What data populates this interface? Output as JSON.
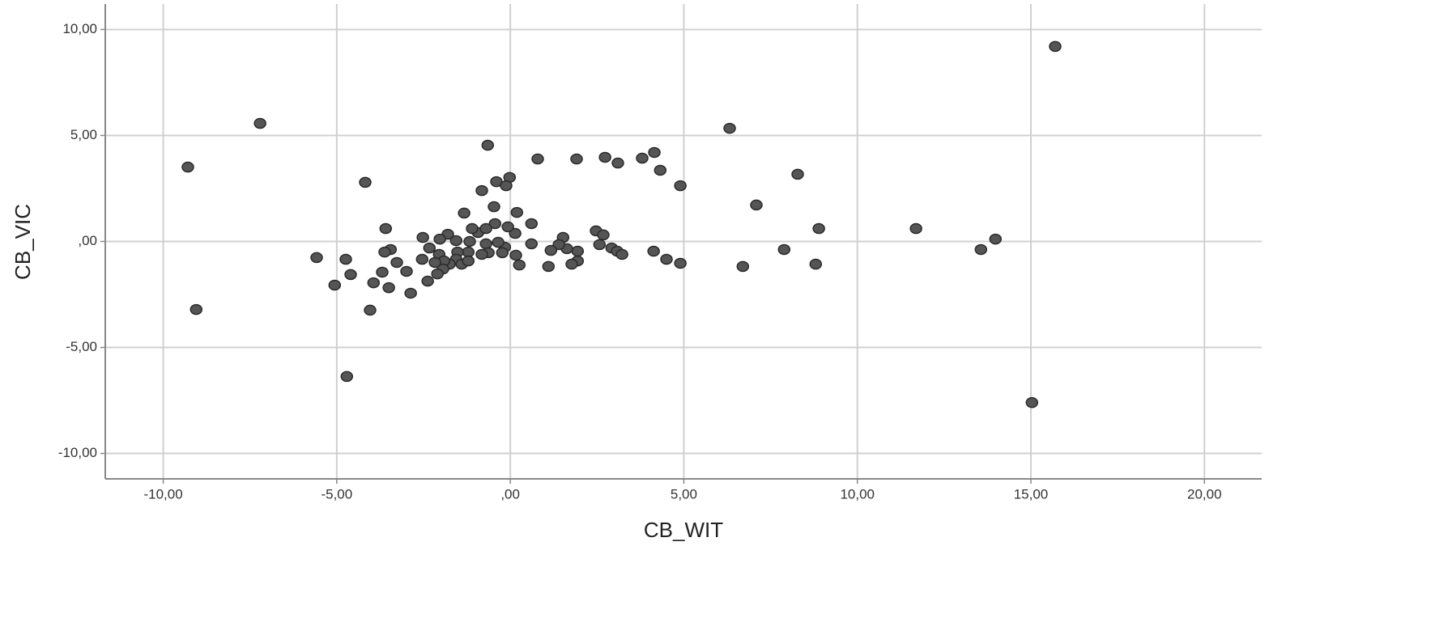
{
  "chart_data": {
    "type": "scatter",
    "x_label": "CB_WIT",
    "y_label": "CB_VIC",
    "x": [
      15.7,
      -7.21,
      -9.29,
      -9.05,
      6.32,
      -0.65,
      0.79,
      1.91,
      2.73,
      3.1,
      3.8,
      4.15,
      4.32,
      4.9,
      8.28,
      -4.18,
      -0.4,
      -0.02,
      -0.12,
      -0.82,
      7.09,
      8.89,
      11.69,
      13.98,
      13.56,
      15.03,
      7.89,
      8.8,
      6.7,
      4.9,
      4.5,
      4.13,
      2.47,
      2.68,
      2.57,
      2.92,
      3.08,
      3.22,
      1.94,
      1.94,
      1.77,
      1.63,
      1.52,
      1.4,
      1.17,
      1.1,
      0.61,
      0.61,
      0.19,
      0.14,
      0.26,
      0.16,
      -0.16,
      -0.23,
      -0.07,
      -0.47,
      -0.44,
      -0.35,
      -0.7,
      -0.63,
      -0.82,
      -0.93,
      -0.7,
      -1.1,
      -1.17,
      -1.21,
      -1.33,
      -1.52,
      -1.56,
      -1.4,
      -1.21,
      -1.75,
      -1.56,
      -1.8,
      -2.03,
      -2.05,
      -1.91,
      -1.94,
      -2.17,
      -2.1,
      -2.33,
      -2.52,
      -2.54,
      -2.38,
      -2.87,
      -3.27,
      -2.99,
      -3.45,
      -3.59,
      -3.62,
      -3.69,
      -3.5,
      -3.94,
      -4.04,
      -4.6,
      -4.74,
      -4.71,
      -5.06,
      -5.58
    ],
    "values": [
      9.2,
      5.57,
      3.51,
      -3.21,
      5.34,
      4.54,
      3.89,
      3.89,
      3.97,
      3.7,
      3.93,
      4.2,
      3.36,
      2.63,
      3.17,
      2.79,
      2.82,
      3.02,
      2.63,
      2.4,
      1.72,
      0.61,
      0.61,
      0.11,
      -0.38,
      -7.6,
      -0.38,
      -1.07,
      -1.18,
      -1.03,
      -0.84,
      -0.46,
      0.5,
      0.31,
      -0.15,
      -0.31,
      -0.46,
      -0.61,
      -0.46,
      -0.92,
      -1.07,
      -0.34,
      0.19,
      -0.15,
      -0.42,
      -1.18,
      0.84,
      -0.11,
      1.37,
      0.38,
      -1.11,
      -0.65,
      -0.27,
      -0.53,
      0.69,
      1.64,
      0.84,
      -0.04,
      -0.11,
      -0.53,
      -0.61,
      0.42,
      0.61,
      0.61,
      0.0,
      -0.5,
      1.34,
      -0.5,
      -0.84,
      -1.07,
      -0.92,
      -1.07,
      0.04,
      0.34,
      0.11,
      -0.61,
      -0.92,
      -1.3,
      -0.99,
      -1.53,
      -0.31,
      0.19,
      -0.84,
      -1.87,
      -2.44,
      -0.99,
      -1.41,
      -0.38,
      0.61,
      -0.5,
      -1.45,
      -2.18,
      -1.95,
      -3.24,
      -1.56,
      -0.84,
      -6.37,
      -2.06,
      -0.76
    ],
    "color": "#555555",
    "xlim": [
      -11.67,
      21.65
    ],
    "xticks": [
      {
        "value": -10,
        "label": "-10,00"
      },
      {
        "value": -5,
        "label": "-5,00"
      },
      {
        "value": 0,
        "label": ",00"
      },
      {
        "value": 5,
        "label": "5,00"
      },
      {
        "value": 10,
        "label": "10,00"
      },
      {
        "value": 15,
        "label": "15,00"
      },
      {
        "value": 20,
        "label": "20,00"
      }
    ],
    "ylim": [
      -11.2,
      11.2
    ],
    "yticks": [
      {
        "value": -10,
        "label": "-10,00"
      },
      {
        "value": -5,
        "label": "-5,00"
      },
      {
        "value": 0,
        "label": ",00"
      },
      {
        "value": 5,
        "label": "5,00"
      },
      {
        "value": 10,
        "label": "10,00"
      }
    ],
    "grid": true
  }
}
